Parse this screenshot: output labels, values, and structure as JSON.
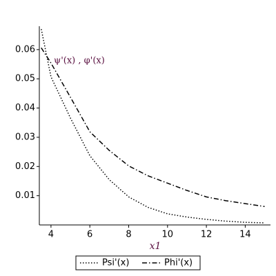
{
  "chart_data": {
    "type": "line",
    "annotation": "ψ'(x) , φ'(x)",
    "x_label": "x1",
    "x": [
      3.5,
      4,
      5,
      6,
      7,
      8,
      9,
      10,
      11,
      12,
      13,
      14,
      15
    ],
    "series": [
      {
        "name": "Psi'(x)",
        "color": "#000000",
        "dash": "1.5,2.5",
        "values": [
          0.067,
          0.0507,
          0.0366,
          0.0237,
          0.0155,
          0.0096,
          0.006,
          0.0038,
          0.0027,
          0.0019,
          0.0013,
          0.0009,
          0.0007
        ]
      },
      {
        "name": "Phi'(x)",
        "color": "#000000",
        "dash": "7,3,1.5,3",
        "values": [
          0.0606,
          0.0554,
          0.0437,
          0.0319,
          0.0255,
          0.0202,
          0.0168,
          0.0143,
          0.0118,
          0.0096,
          0.0083,
          0.0073,
          0.0063
        ]
      }
    ],
    "xlim": [
      3.4,
      15.3
    ],
    "ylim": [
      0,
      0.068
    ],
    "xticks": [
      4,
      6,
      8,
      10,
      12,
      14
    ],
    "yticks": [
      0.01,
      0.02,
      0.03,
      0.04,
      0.05,
      0.06
    ]
  }
}
